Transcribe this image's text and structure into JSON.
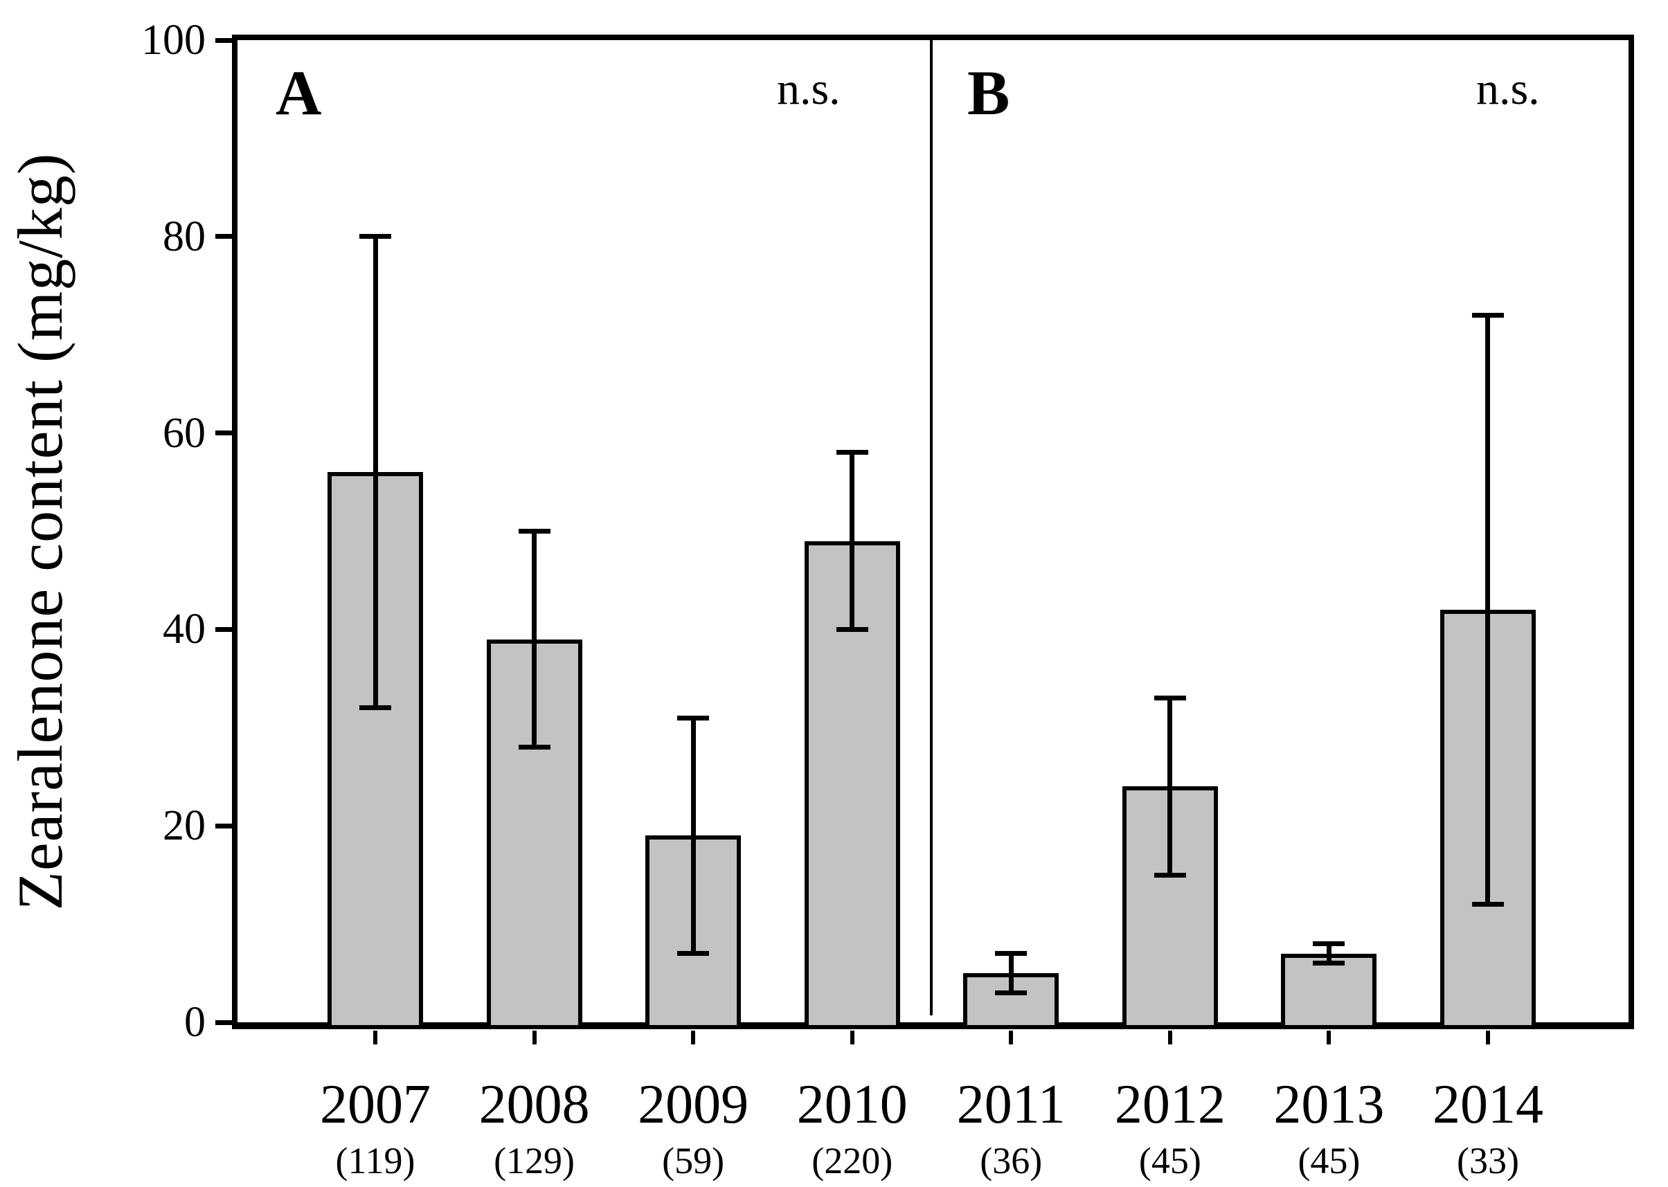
{
  "chart_data": {
    "type": "bar",
    "title": "",
    "xlabel": "",
    "ylabel": "Zearalenone content (mg/kg)",
    "ylim": [
      0,
      100
    ],
    "yticks": [
      0,
      20,
      40,
      60,
      80,
      100
    ],
    "grid": "off",
    "legend": "none",
    "bar_color": "#c3c3c3",
    "bar_border_color": "#000000",
    "panels": [
      {
        "label": "A",
        "annotation": "n.s.",
        "categories": [
          "2007",
          "2008",
          "2009",
          "2010"
        ]
      },
      {
        "label": "B",
        "annotation": "n.s.",
        "categories": [
          "2011",
          "2012",
          "2013",
          "2014"
        ]
      }
    ],
    "categories": [
      "2007",
      "2008",
      "2009",
      "2010",
      "2011",
      "2012",
      "2013",
      "2014"
    ],
    "n_labels": [
      "(119)",
      "(129)",
      "(59)",
      "(220)",
      "(36)",
      "(45)",
      "(45)",
      "(33)"
    ],
    "values": [
      56,
      39,
      19,
      49,
      5,
      24,
      7,
      42
    ],
    "error_high": [
      80,
      50,
      31,
      58,
      7,
      33,
      8,
      72
    ],
    "error_low": [
      32,
      28,
      7,
      40,
      3,
      15,
      6,
      12
    ]
  }
}
